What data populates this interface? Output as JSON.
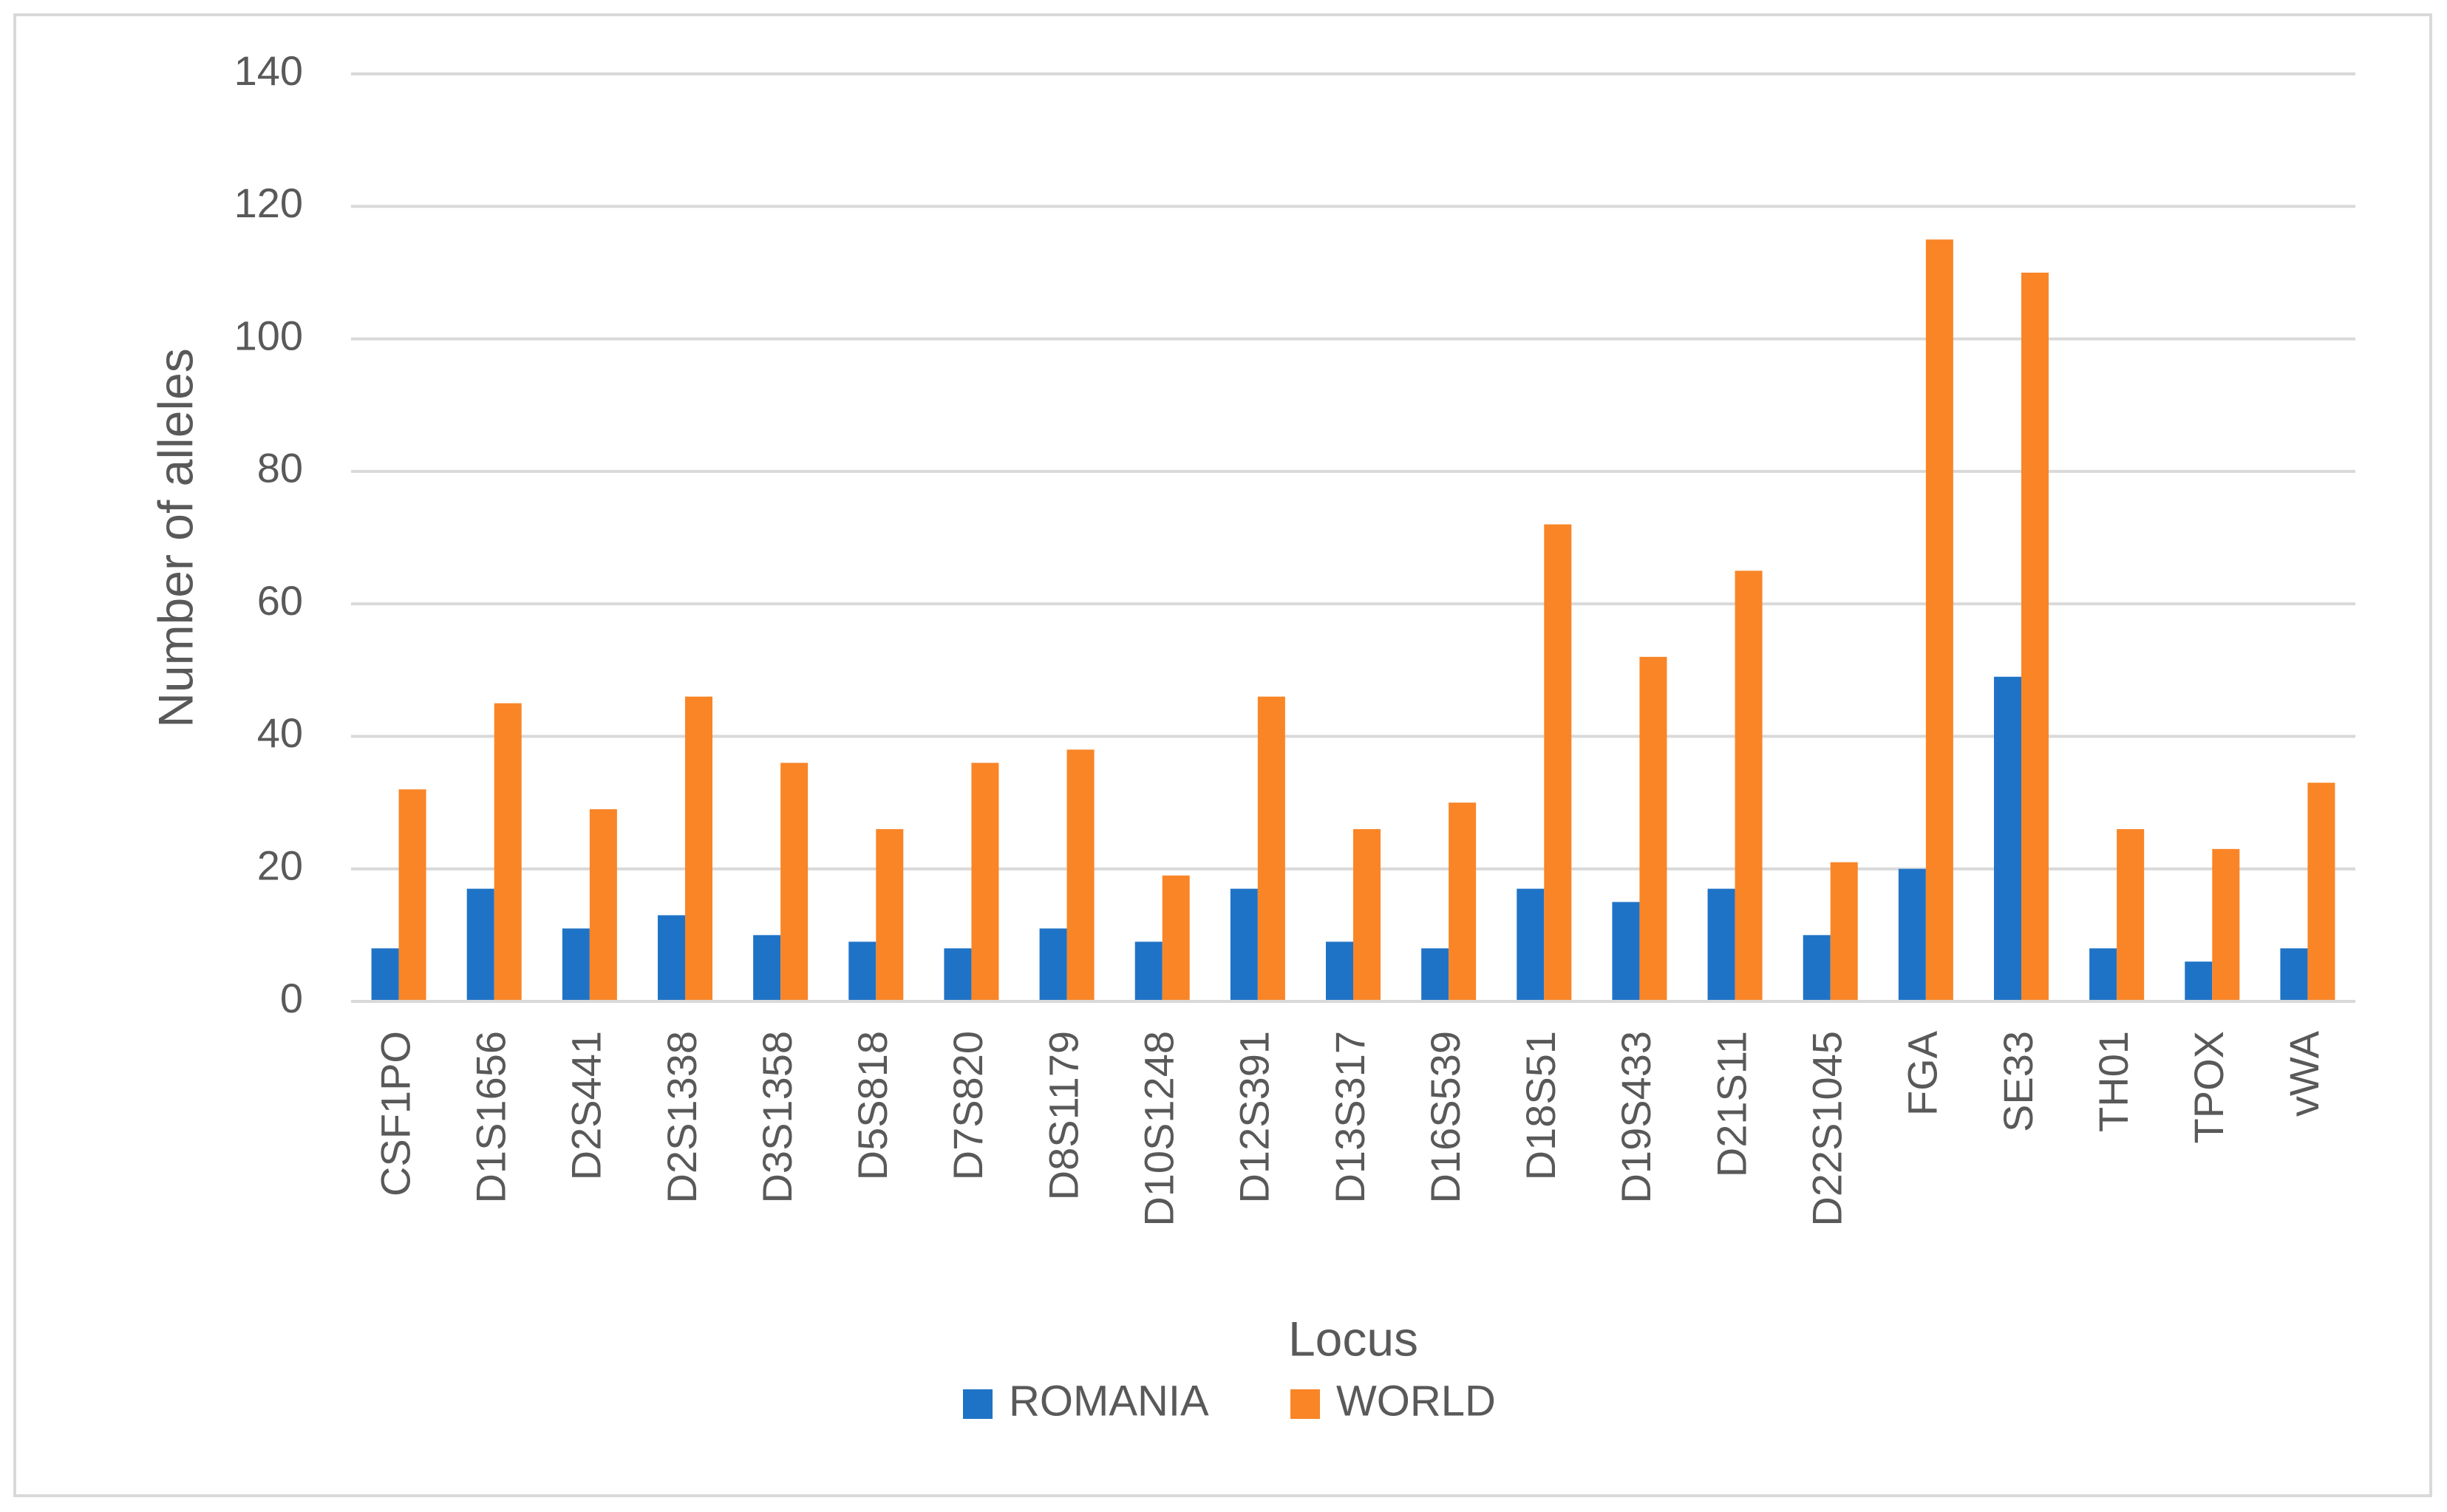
{
  "chart_data": {
    "type": "bar",
    "title": "",
    "xlabel": "Locus",
    "ylabel": "Number of alleles",
    "ylim": [
      0,
      140
    ],
    "yticks": [
      "0",
      "20",
      "40",
      "60",
      "80",
      "100",
      "120",
      "140"
    ],
    "grid": true,
    "legend_position": "bottom",
    "categories": [
      "CSF1PO",
      "D1S1656",
      "D2S441",
      "D2S1338",
      "D3S1358",
      "D5S818",
      "D7S820",
      "D8S1179",
      "D10S1248",
      "D12S391",
      "D13S317",
      "D16S539",
      "D18S51",
      "D19S433",
      "D21S11",
      "D22S1045",
      "FGA",
      "SE33",
      "TH01",
      "TPOX",
      "vWA"
    ],
    "series": [
      {
        "name": "ROMANIA",
        "color": "#1f73c6",
        "values": [
          8,
          17,
          11,
          13,
          10,
          9,
          8,
          11,
          9,
          17,
          9,
          8,
          17,
          15,
          17,
          10,
          20,
          49,
          8,
          6,
          8
        ]
      },
      {
        "name": "WORLD",
        "color": "#f98527",
        "values": [
          32,
          45,
          29,
          46,
          36,
          26,
          36,
          38,
          19,
          46,
          26,
          30,
          72,
          52,
          65,
          21,
          115,
          110,
          26,
          23,
          33
        ]
      }
    ]
  }
}
